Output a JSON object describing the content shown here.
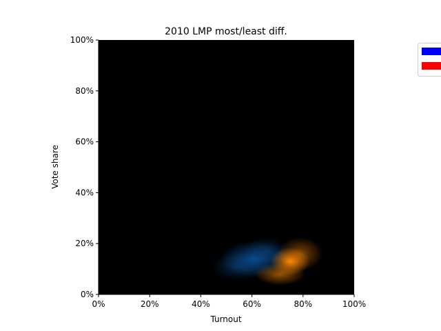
{
  "chart_data": {
    "type": "heatmap",
    "title": "2010 LMP most/least diff.",
    "xlabel": "Turnout",
    "ylabel": "Vote share",
    "xlim": [
      0,
      100
    ],
    "ylim": [
      0,
      100
    ],
    "x_ticks": [
      "0%",
      "20%",
      "40%",
      "60%",
      "80%",
      "100%"
    ],
    "y_ticks": [
      "0%",
      "20%",
      "40%",
      "60%",
      "80%",
      "100%"
    ],
    "x_tick_values": [
      0,
      20,
      40,
      60,
      80,
      100
    ],
    "y_tick_values": [
      0,
      20,
      40,
      60,
      80,
      100
    ],
    "background_color": "#000000",
    "legend_position": "top-right, clipped at image edge",
    "series": [
      {
        "color": "#0000ff",
        "density_color": "#0a4a8c",
        "blobs": [
          {
            "x": 61,
            "y": 14,
            "sx": 6,
            "sy": 3.2,
            "weight": 1.0
          },
          {
            "x": 55,
            "y": 11,
            "sx": 5,
            "sy": 2.5,
            "weight": 0.55
          },
          {
            "x": 66,
            "y": 17,
            "sx": 4,
            "sy": 2.5,
            "weight": 0.5
          }
        ]
      },
      {
        "color": "#ff0000",
        "density_color": "#ff8a0a",
        "blobs": [
          {
            "x": 75,
            "y": 13,
            "sx": 3.5,
            "sy": 2.5,
            "weight": 1.0
          },
          {
            "x": 71,
            "y": 8,
            "sx": 4.5,
            "sy": 2,
            "weight": 0.6
          },
          {
            "x": 79,
            "y": 16,
            "sx": 4,
            "sy": 3,
            "weight": 0.5
          }
        ]
      }
    ]
  }
}
